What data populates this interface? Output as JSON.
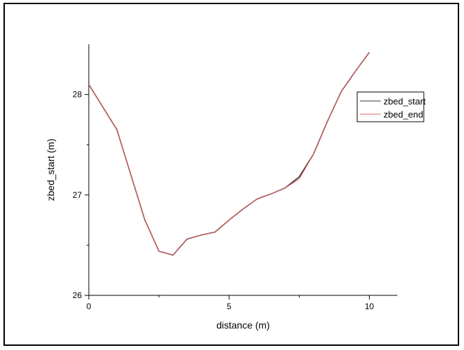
{
  "chart_data": {
    "type": "line",
    "title": "",
    "xlabel": "distance (m)",
    "ylabel": "zbed_start (m)",
    "xlim": [
      0,
      11
    ],
    "ylim": [
      26,
      28.5
    ],
    "xticks": [
      0,
      5,
      10
    ],
    "yticks": [
      26,
      27,
      28
    ],
    "legend_position": "top-right",
    "series": [
      {
        "name": "zbed_start",
        "color": "#333333",
        "x": [
          0,
          1,
          1.5,
          2,
          2.5,
          3,
          3.5,
          4,
          4.5,
          5,
          5.5,
          6,
          6.5,
          7,
          7.5,
          8,
          8.5,
          9,
          9.5,
          10
        ],
        "y": [
          28.1,
          27.65,
          27.2,
          26.75,
          26.44,
          26.4,
          26.56,
          26.6,
          26.63,
          26.75,
          26.86,
          26.96,
          27.01,
          27.07,
          27.18,
          27.4,
          27.73,
          28.03,
          28.23,
          28.42
        ]
      },
      {
        "name": "zbed_end",
        "color": "#e06060",
        "x": [
          0,
          1,
          1.5,
          2,
          2.5,
          3,
          3.5,
          4,
          4.5,
          5,
          5.5,
          6,
          6.5,
          7,
          7.5,
          8,
          8.5,
          9,
          9.5,
          10
        ],
        "y": [
          28.1,
          27.65,
          27.2,
          26.75,
          26.44,
          26.4,
          26.56,
          26.6,
          26.63,
          26.75,
          26.86,
          26.96,
          27.01,
          27.07,
          27.16,
          27.4,
          27.73,
          28.03,
          28.23,
          28.42
        ]
      }
    ]
  }
}
